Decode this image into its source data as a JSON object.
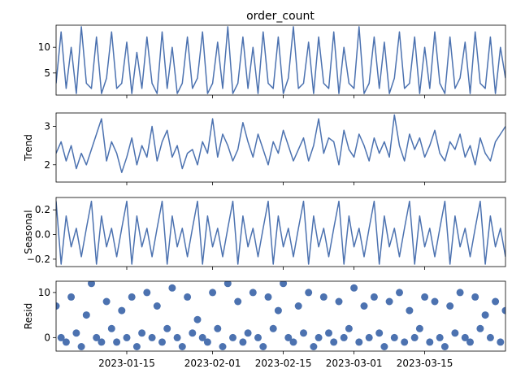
{
  "chart_data": {
    "type": "line",
    "title": "order_count",
    "subplot_titles": [
      "order_count",
      "",
      "",
      ""
    ],
    "ylabels": [
      "",
      "Trend",
      "Seasonal",
      "Resid"
    ],
    "xlim": [
      "2023-01-01",
      "2023-03-31"
    ],
    "x_tick_labels": [
      "2023-01-15",
      "2023-02-01",
      "2023-02-15",
      "2023-03-01",
      "2023-03-15"
    ],
    "line_color": "#4C72B0",
    "grid": false,
    "panels": [
      {
        "name": "observed",
        "ylabel": "",
        "ylim": [
          0.7,
          14.3
        ],
        "yticks": [
          5,
          10
        ],
        "style": "line",
        "series": [
          {
            "x": [
              "2023-01-01",
              "2023-01-02",
              "2023-01-03",
              "2023-01-04",
              "2023-01-05",
              "2023-01-06",
              "2023-01-07",
              "2023-01-08",
              "2023-01-09",
              "2023-01-10",
              "2023-01-11",
              "2023-01-12",
              "2023-01-13",
              "2023-01-14",
              "2023-01-15",
              "2023-01-16",
              "2023-01-17",
              "2023-01-18",
              "2023-01-19",
              "2023-01-20",
              "2023-01-21",
              "2023-01-22",
              "2023-01-23",
              "2023-01-24",
              "2023-01-25",
              "2023-01-26",
              "2023-01-27",
              "2023-01-28",
              "2023-01-29",
              "2023-01-30",
              "2023-01-31",
              "2023-02-01",
              "2023-02-02",
              "2023-02-03",
              "2023-02-04",
              "2023-02-05",
              "2023-02-06",
              "2023-02-07",
              "2023-02-08",
              "2023-02-09",
              "2023-02-10",
              "2023-02-11",
              "2023-02-12",
              "2023-02-13",
              "2023-02-14",
              "2023-02-15",
              "2023-02-16",
              "2023-02-17",
              "2023-02-18",
              "2023-02-19",
              "2023-02-20",
              "2023-02-21",
              "2023-02-22",
              "2023-02-23",
              "2023-02-24",
              "2023-02-25",
              "2023-02-26",
              "2023-02-27",
              "2023-02-28",
              "2023-03-01",
              "2023-03-02",
              "2023-03-03",
              "2023-03-04",
              "2023-03-05",
              "2023-03-06",
              "2023-03-07",
              "2023-03-08",
              "2023-03-09",
              "2023-03-10",
              "2023-03-11",
              "2023-03-12",
              "2023-03-13",
              "2023-03-14",
              "2023-03-15",
              "2023-03-16",
              "2023-03-17",
              "2023-03-18",
              "2023-03-19",
              "2023-03-20",
              "2023-03-21",
              "2023-03-22",
              "2023-03-23",
              "2023-03-24",
              "2023-03-25",
              "2023-03-26",
              "2023-03-27",
              "2023-03-28",
              "2023-03-29",
              "2023-03-30",
              "2023-03-31"
            ],
            "y": [
              3,
              13,
              2,
              10,
              1,
              14,
              3,
              2,
              12,
              1,
              4,
              13,
              2,
              3,
              11,
              1,
              9,
              2,
              12,
              3,
              1,
              13,
              2,
              10,
              1,
              3,
              12,
              2,
              4,
              13,
              1,
              3,
              11,
              2,
              14,
              1,
              3,
              12,
              2,
              10,
              1,
              13,
              3,
              2,
              12,
              1,
              4,
              14,
              2,
              3,
              11,
              1,
              12,
              3,
              2,
              13,
              1,
              10,
              3,
              2,
              14,
              1,
              3,
              12,
              2,
              11,
              1,
              4,
              13,
              2,
              3,
              12,
              1,
              10,
              2,
              13,
              3,
              1,
              12,
              2,
              4,
              11,
              1,
              13,
              3,
              2,
              12,
              1,
              10,
              4
            ]
          }
        ]
      },
      {
        "name": "trend",
        "ylabel": "Trend",
        "ylim": [
          1.55,
          3.35
        ],
        "yticks": [
          2,
          3
        ],
        "style": "line",
        "series": [
          {
            "x": [
              "2023-01-01",
              "2023-01-02",
              "2023-01-03",
              "2023-01-04",
              "2023-01-05",
              "2023-01-06",
              "2023-01-07",
              "2023-01-08",
              "2023-01-09",
              "2023-01-10",
              "2023-01-11",
              "2023-01-12",
              "2023-01-13",
              "2023-01-14",
              "2023-01-15",
              "2023-01-16",
              "2023-01-17",
              "2023-01-18",
              "2023-01-19",
              "2023-01-20",
              "2023-01-21",
              "2023-01-22",
              "2023-01-23",
              "2023-01-24",
              "2023-01-25",
              "2023-01-26",
              "2023-01-27",
              "2023-01-28",
              "2023-01-29",
              "2023-01-30",
              "2023-01-31",
              "2023-02-01",
              "2023-02-02",
              "2023-02-03",
              "2023-02-04",
              "2023-02-05",
              "2023-02-06",
              "2023-02-07",
              "2023-02-08",
              "2023-02-09",
              "2023-02-10",
              "2023-02-11",
              "2023-02-12",
              "2023-02-13",
              "2023-02-14",
              "2023-02-15",
              "2023-02-16",
              "2023-02-17",
              "2023-02-18",
              "2023-02-19",
              "2023-02-20",
              "2023-02-21",
              "2023-02-22",
              "2023-02-23",
              "2023-02-24",
              "2023-02-25",
              "2023-02-26",
              "2023-02-27",
              "2023-02-28",
              "2023-03-01",
              "2023-03-02",
              "2023-03-03",
              "2023-03-04",
              "2023-03-05",
              "2023-03-06",
              "2023-03-07",
              "2023-03-08",
              "2023-03-09",
              "2023-03-10",
              "2023-03-11",
              "2023-03-12",
              "2023-03-13",
              "2023-03-14",
              "2023-03-15",
              "2023-03-16",
              "2023-03-17",
              "2023-03-18",
              "2023-03-19",
              "2023-03-20",
              "2023-03-21",
              "2023-03-22",
              "2023-03-23",
              "2023-03-24",
              "2023-03-25",
              "2023-03-26",
              "2023-03-27",
              "2023-03-28",
              "2023-03-29",
              "2023-03-30",
              "2023-03-31"
            ],
            "y": [
              2.3,
              2.6,
              2.1,
              2.5,
              1.9,
              2.3,
              2.0,
              2.4,
              2.8,
              3.2,
              2.1,
              2.6,
              2.3,
              1.8,
              2.2,
              2.7,
              2.0,
              2.5,
              2.2,
              3.0,
              2.1,
              2.6,
              2.9,
              2.2,
              2.5,
              1.9,
              2.3,
              2.4,
              2.0,
              2.6,
              2.3,
              3.2,
              2.2,
              2.8,
              2.5,
              2.1,
              2.4,
              3.1,
              2.6,
              2.2,
              2.8,
              2.4,
              2.0,
              2.6,
              2.3,
              2.9,
              2.5,
              2.1,
              2.4,
              2.7,
              2.1,
              2.5,
              3.2,
              2.3,
              2.7,
              2.6,
              2.0,
              2.9,
              2.4,
              2.2,
              2.8,
              2.5,
              2.1,
              2.7,
              2.3,
              2.6,
              2.2,
              3.3,
              2.5,
              2.1,
              2.8,
              2.4,
              2.7,
              2.2,
              2.5,
              2.9,
              2.3,
              2.1,
              2.6,
              2.4,
              2.8,
              2.2,
              2.5,
              2.0,
              2.7,
              2.3,
              2.1,
              2.6,
              2.8,
              3.0
            ]
          }
        ]
      },
      {
        "name": "seasonal",
        "ylabel": "Seasonal",
        "ylim": [
          -0.26,
          0.3
        ],
        "yticks": [
          -0.2,
          0.0,
          0.2
        ],
        "style": "line",
        "period": 7,
        "series": [
          {
            "x": [
              "2023-01-01",
              "2023-01-02",
              "2023-01-03",
              "2023-01-04",
              "2023-01-05",
              "2023-01-06",
              "2023-01-07"
            ],
            "y": [
              0.27,
              -0.24,
              0.15,
              -0.1,
              0.05,
              -0.18,
              0.05
            ],
            "repeats_over_xlim": true
          }
        ]
      },
      {
        "name": "resid",
        "ylabel": "Resid",
        "ylim": [
          -3.0,
          12.5
        ],
        "yticks": [
          0,
          10
        ],
        "style": "scatter",
        "series": [
          {
            "x": [
              "2023-01-01",
              "2023-01-02",
              "2023-01-03",
              "2023-01-04",
              "2023-01-05",
              "2023-01-06",
              "2023-01-07",
              "2023-01-08",
              "2023-01-09",
              "2023-01-10",
              "2023-01-11",
              "2023-01-12",
              "2023-01-13",
              "2023-01-14",
              "2023-01-15",
              "2023-01-16",
              "2023-01-17",
              "2023-01-18",
              "2023-01-19",
              "2023-01-20",
              "2023-01-21",
              "2023-01-22",
              "2023-01-23",
              "2023-01-24",
              "2023-01-25",
              "2023-01-26",
              "2023-01-27",
              "2023-01-28",
              "2023-01-29",
              "2023-01-30",
              "2023-01-31",
              "2023-02-01",
              "2023-02-02",
              "2023-02-03",
              "2023-02-04",
              "2023-02-05",
              "2023-02-06",
              "2023-02-07",
              "2023-02-08",
              "2023-02-09",
              "2023-02-10",
              "2023-02-11",
              "2023-02-12",
              "2023-02-13",
              "2023-02-14",
              "2023-02-15",
              "2023-02-16",
              "2023-02-17",
              "2023-02-18",
              "2023-02-19",
              "2023-02-20",
              "2023-02-21",
              "2023-02-22",
              "2023-02-23",
              "2023-02-24",
              "2023-02-25",
              "2023-02-26",
              "2023-02-27",
              "2023-02-28",
              "2023-03-01",
              "2023-03-02",
              "2023-03-03",
              "2023-03-04",
              "2023-03-05",
              "2023-03-06",
              "2023-03-07",
              "2023-03-08",
              "2023-03-09",
              "2023-03-10",
              "2023-03-11",
              "2023-03-12",
              "2023-03-13",
              "2023-03-14",
              "2023-03-15",
              "2023-03-16",
              "2023-03-17",
              "2023-03-18",
              "2023-03-19",
              "2023-03-20",
              "2023-03-21",
              "2023-03-22",
              "2023-03-23",
              "2023-03-24",
              "2023-03-25",
              "2023-03-26",
              "2023-03-27",
              "2023-03-28",
              "2023-03-29",
              "2023-03-30",
              "2023-03-31"
            ],
            "y": [
              7,
              0,
              -1,
              9,
              1,
              -2,
              5,
              12,
              0,
              -1,
              8,
              2,
              -1,
              6,
              0,
              9,
              -2,
              1,
              10,
              0,
              7,
              -1,
              2,
              11,
              0,
              -2,
              9,
              1,
              4,
              0,
              -1,
              10,
              2,
              -2,
              12,
              0,
              8,
              -1,
              1,
              10,
              0,
              -2,
              9,
              2,
              6,
              12,
              0,
              -1,
              7,
              1,
              10,
              -2,
              0,
              9,
              1,
              -1,
              8,
              0,
              2,
              11,
              -1,
              7,
              0,
              9,
              1,
              -2,
              8,
              0,
              10,
              -1,
              6,
              0,
              2,
              9,
              -1,
              8,
              0,
              -2,
              7,
              1,
              10,
              0,
              -1,
              9,
              2,
              5,
              0,
              8,
              -1,
              6
            ]
          }
        ]
      }
    ]
  }
}
